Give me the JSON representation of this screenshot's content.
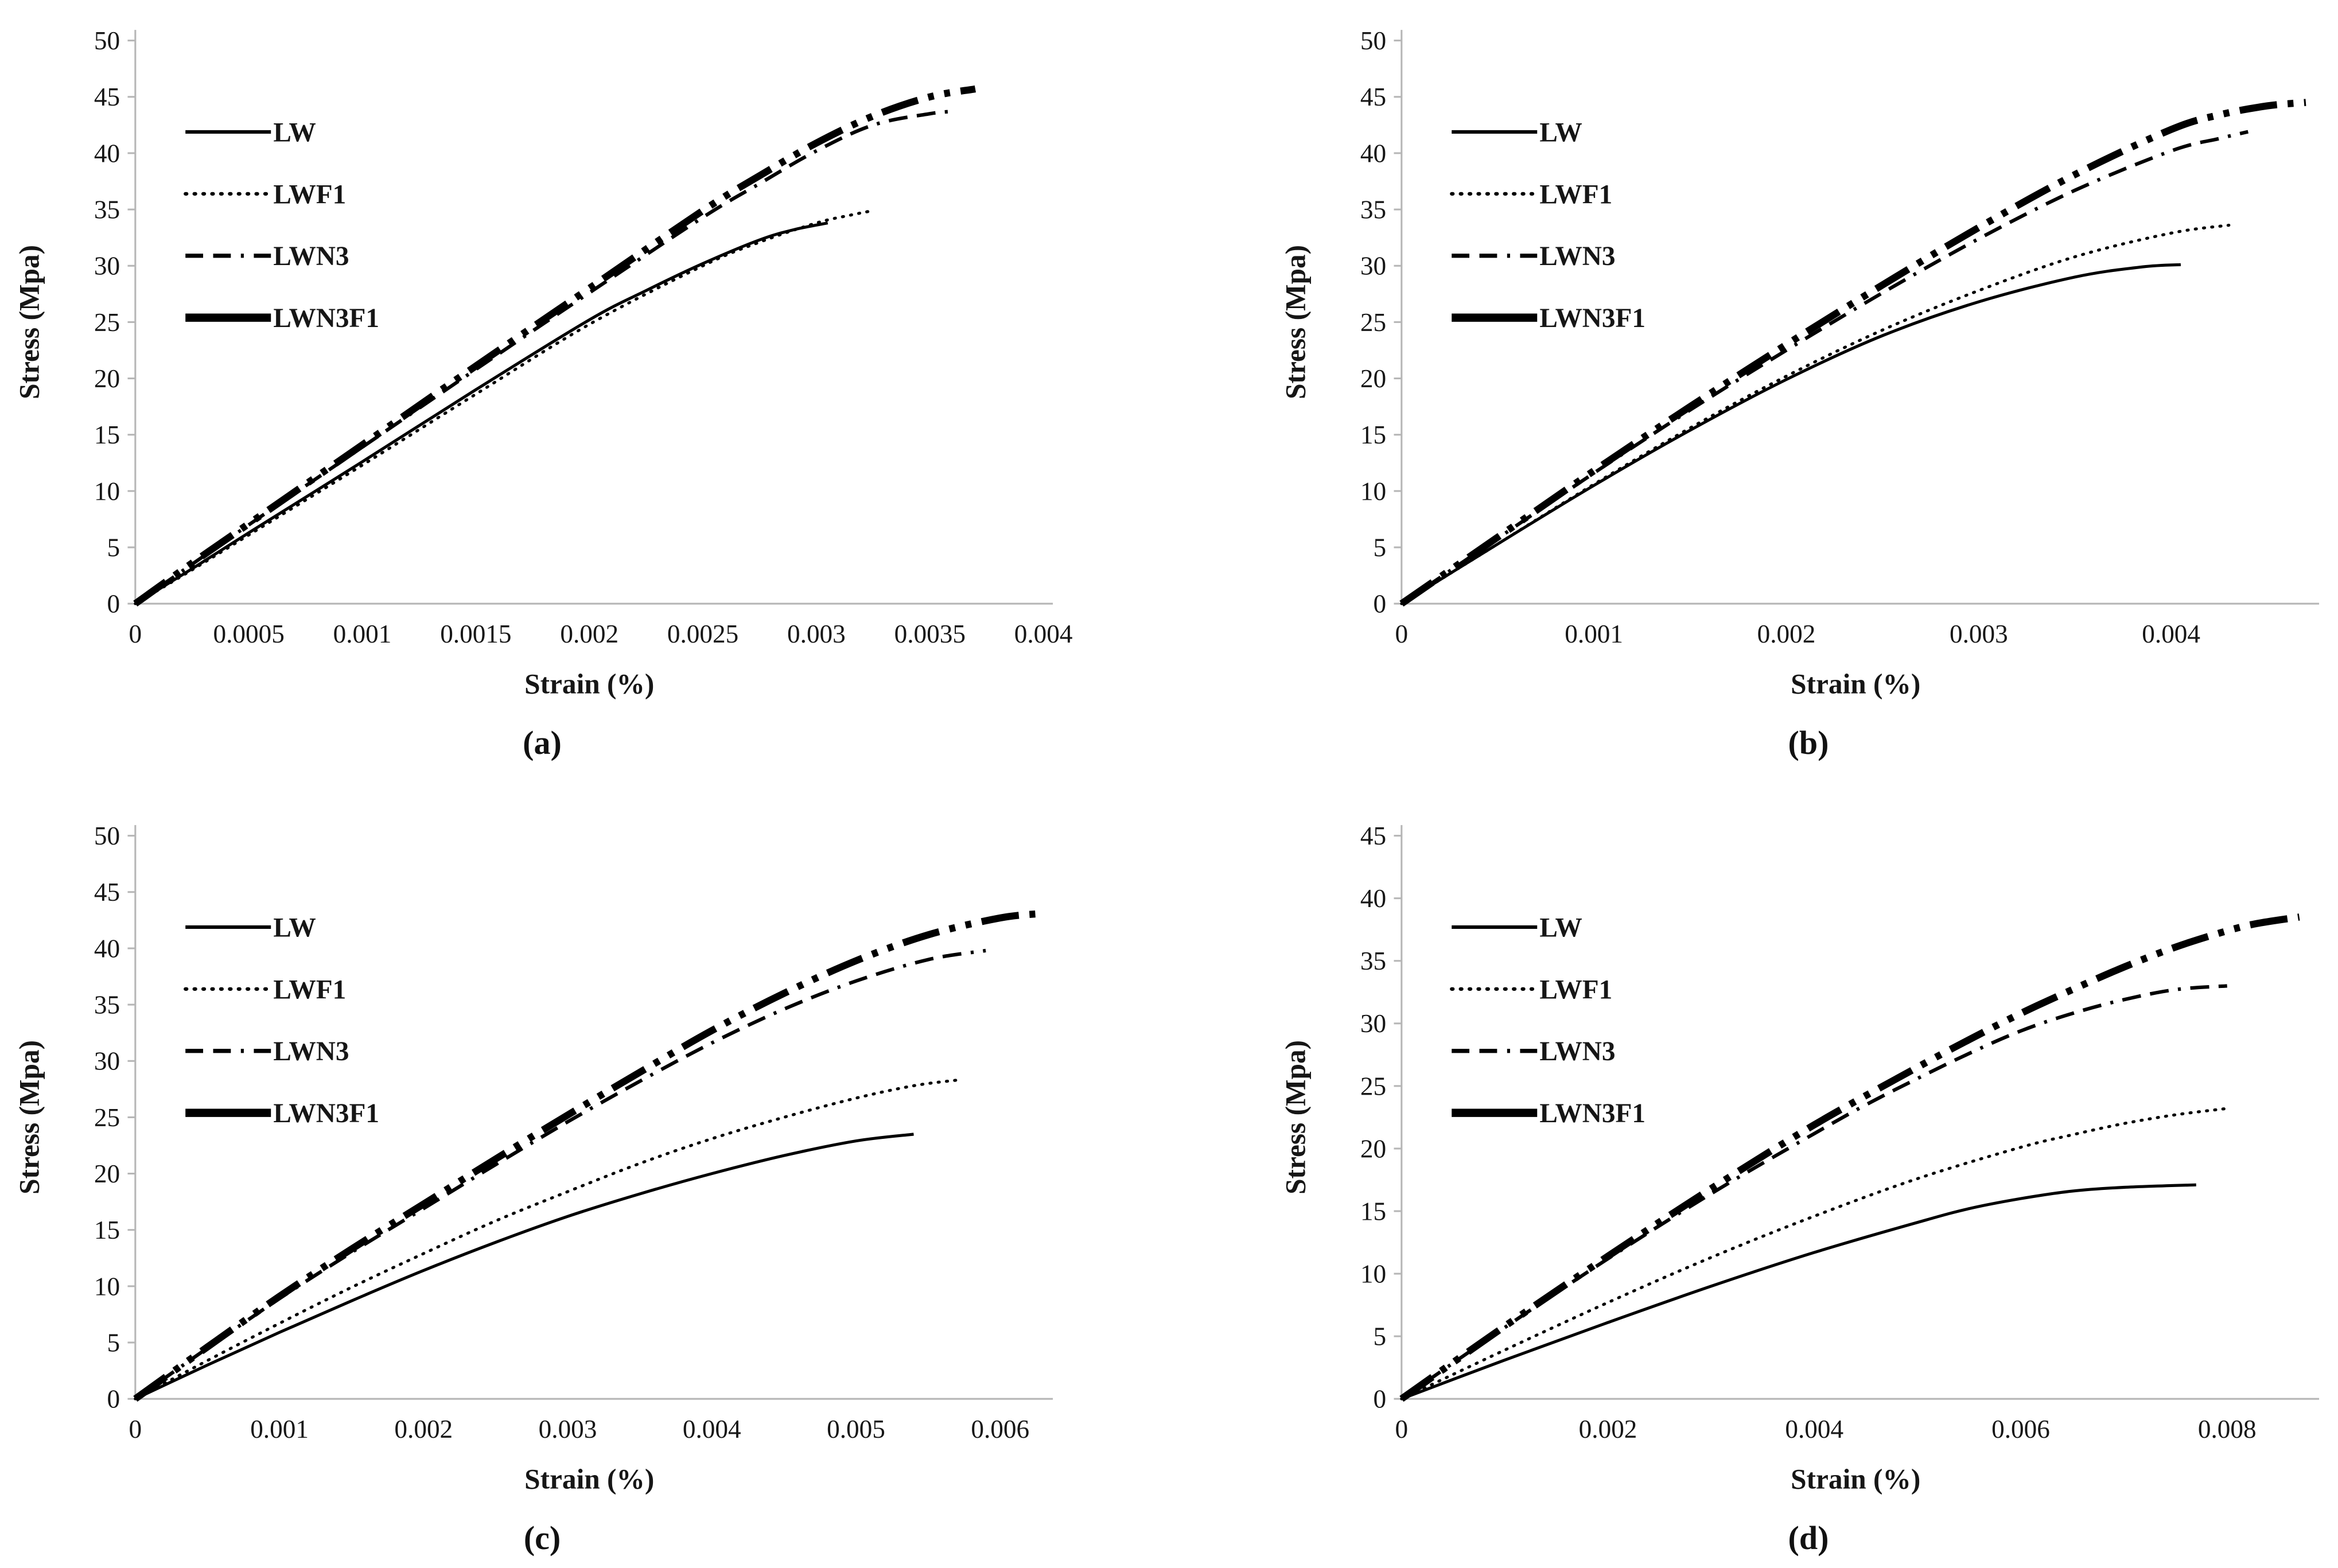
{
  "figure": {
    "background": "#ffffff",
    "series_names": [
      "LW",
      "LWF1",
      "LWN3",
      "LWN3F1"
    ]
  },
  "colors": {
    "line": "#000000",
    "axis": "#b6b6b6",
    "text": "#161616"
  },
  "chart_data": [
    {
      "id": "a",
      "caption": "(a)",
      "type": "line",
      "xlabel": "Strain (%)",
      "ylabel": "Stress (Mpa)",
      "xlim": [
        0,
        0.004
      ],
      "ylim": [
        0,
        50
      ],
      "xticks": [
        0,
        0.0005,
        0.001,
        0.0015,
        0.002,
        0.0025,
        0.003,
        0.0035,
        0.004
      ],
      "ytick_step": 5,
      "grid": false,
      "legend_position": "upper-left",
      "series": [
        {
          "name": "LW",
          "style": "solid-thin",
          "points": [
            [
              0,
              0
            ],
            [
              0.00025,
              3.1
            ],
            [
              0.0005,
              6.3
            ],
            [
              0.001,
              12.6
            ],
            [
              0.0015,
              19.0
            ],
            [
              0.002,
              25.2
            ],
            [
              0.00225,
              27.8
            ],
            [
              0.0025,
              30.2
            ],
            [
              0.00275,
              32.3
            ],
            [
              0.0029,
              33.2
            ],
            [
              0.00305,
              33.8
            ]
          ]
        },
        {
          "name": "LWF1",
          "style": "dotted",
          "points": [
            [
              0,
              0
            ],
            [
              0.00025,
              3.0
            ],
            [
              0.0005,
              6.1
            ],
            [
              0.001,
              12.3
            ],
            [
              0.0015,
              18.6
            ],
            [
              0.002,
              24.8
            ],
            [
              0.0025,
              30.0
            ],
            [
              0.00275,
              32.1
            ],
            [
              0.003,
              33.8
            ],
            [
              0.00315,
              34.5
            ],
            [
              0.00325,
              34.9
            ]
          ]
        },
        {
          "name": "LWN3",
          "style": "dashed",
          "points": [
            [
              0,
              0
            ],
            [
              0.00025,
              3.5
            ],
            [
              0.0005,
              7.0
            ],
            [
              0.001,
              13.9
            ],
            [
              0.0015,
              20.8
            ],
            [
              0.002,
              27.6
            ],
            [
              0.0025,
              34.3
            ],
            [
              0.00275,
              37.3
            ],
            [
              0.003,
              40.2
            ],
            [
              0.00325,
              42.5
            ],
            [
              0.0035,
              43.5
            ],
            [
              0.0036,
              43.7
            ]
          ]
        },
        {
          "name": "LWN3F1",
          "style": "thick-dashdot",
          "points": [
            [
              0,
              0
            ],
            [
              0.00025,
              3.6
            ],
            [
              0.0005,
              7.1
            ],
            [
              0.001,
              14.1
            ],
            [
              0.0015,
              21.1
            ],
            [
              0.002,
              28.0
            ],
            [
              0.0025,
              34.9
            ],
            [
              0.00275,
              38.0
            ],
            [
              0.003,
              40.9
            ],
            [
              0.00325,
              43.3
            ],
            [
              0.0035,
              45.0
            ],
            [
              0.0037,
              45.7
            ]
          ]
        }
      ]
    },
    {
      "id": "b",
      "caption": "(b)",
      "type": "line",
      "xlabel": "Strain (%)",
      "ylabel": "Stress (Mpa)",
      "xlim": [
        0,
        0.00472
      ],
      "ylim": [
        0,
        50
      ],
      "xticks": [
        0,
        0.001,
        0.002,
        0.003,
        0.004
      ],
      "ytick_step": 5,
      "grid": false,
      "legend_position": "upper-left",
      "series": [
        {
          "name": "LW",
          "style": "solid-thin",
          "points": [
            [
              0,
              0
            ],
            [
              0.0005,
              5.3
            ],
            [
              0.001,
              10.5
            ],
            [
              0.0015,
              15.4
            ],
            [
              0.002,
              19.9
            ],
            [
              0.0025,
              23.8
            ],
            [
              0.003,
              26.8
            ],
            [
              0.0035,
              29.0
            ],
            [
              0.00385,
              29.9
            ],
            [
              0.00405,
              30.1
            ]
          ]
        },
        {
          "name": "LWF1",
          "style": "dotted",
          "points": [
            [
              0,
              0
            ],
            [
              0.0005,
              5.3
            ],
            [
              0.001,
              10.6
            ],
            [
              0.0015,
              15.6
            ],
            [
              0.002,
              20.2
            ],
            [
              0.0025,
              24.3
            ],
            [
              0.003,
              27.8
            ],
            [
              0.0035,
              30.8
            ],
            [
              0.004,
              32.9
            ],
            [
              0.0043,
              33.6
            ]
          ]
        },
        {
          "name": "LWN3",
          "style": "dashed",
          "points": [
            [
              0,
              0
            ],
            [
              0.0005,
              5.8
            ],
            [
              0.001,
              11.6
            ],
            [
              0.0015,
              17.2
            ],
            [
              0.002,
              22.5
            ],
            [
              0.0025,
              27.6
            ],
            [
              0.003,
              32.4
            ],
            [
              0.0035,
              36.7
            ],
            [
              0.004,
              40.2
            ],
            [
              0.00425,
              41.3
            ],
            [
              0.0044,
              41.9
            ]
          ]
        },
        {
          "name": "LWN3F1",
          "style": "thick-dashdot",
          "points": [
            [
              0,
              0
            ],
            [
              0.0005,
              5.9
            ],
            [
              0.001,
              11.8
            ],
            [
              0.0015,
              17.5
            ],
            [
              0.002,
              23.0
            ],
            [
              0.0025,
              28.3
            ],
            [
              0.003,
              33.4
            ],
            [
              0.0035,
              38.1
            ],
            [
              0.004,
              42.1
            ],
            [
              0.00425,
              43.4
            ],
            [
              0.0045,
              44.2
            ],
            [
              0.0047,
              44.5
            ]
          ]
        }
      ]
    },
    {
      "id": "c",
      "caption": "(c)",
      "type": "line",
      "xlabel": "Strain (%)",
      "ylabel": "Stress (Mpa)",
      "xlim": [
        0,
        0.0063
      ],
      "ylim": [
        0,
        50
      ],
      "xticks": [
        0,
        0.001,
        0.002,
        0.003,
        0.004,
        0.005,
        0.006
      ],
      "ytick_step": 5,
      "grid": false,
      "legend_position": "upper-left",
      "series": [
        {
          "name": "LW",
          "style": "solid-thin",
          "points": [
            [
              0,
              0
            ],
            [
              0.0005,
              3.0
            ],
            [
              0.001,
              5.9
            ],
            [
              0.0015,
              8.7
            ],
            [
              0.002,
              11.4
            ],
            [
              0.0025,
              13.9
            ],
            [
              0.003,
              16.2
            ],
            [
              0.0035,
              18.2
            ],
            [
              0.004,
              20.0
            ],
            [
              0.0045,
              21.6
            ],
            [
              0.005,
              22.9
            ],
            [
              0.0054,
              23.5
            ]
          ]
        },
        {
          "name": "LWF1",
          "style": "dotted",
          "points": [
            [
              0,
              0
            ],
            [
              0.0005,
              3.4
            ],
            [
              0.001,
              6.7
            ],
            [
              0.0015,
              9.9
            ],
            [
              0.002,
              12.9
            ],
            [
              0.0025,
              15.8
            ],
            [
              0.003,
              18.4
            ],
            [
              0.0035,
              20.9
            ],
            [
              0.004,
              23.1
            ],
            [
              0.0045,
              25.0
            ],
            [
              0.005,
              26.7
            ],
            [
              0.0054,
              27.8
            ],
            [
              0.0057,
              28.3
            ]
          ]
        },
        {
          "name": "LWN3",
          "style": "dashed",
          "points": [
            [
              0,
              0
            ],
            [
              0.0005,
              4.5
            ],
            [
              0.001,
              8.9
            ],
            [
              0.0015,
              13.0
            ],
            [
              0.002,
              16.9
            ],
            [
              0.0025,
              20.8
            ],
            [
              0.003,
              24.6
            ],
            [
              0.0035,
              28.2
            ],
            [
              0.004,
              31.6
            ],
            [
              0.0045,
              34.6
            ],
            [
              0.005,
              37.1
            ],
            [
              0.0055,
              39.0
            ],
            [
              0.0059,
              39.8
            ]
          ]
        },
        {
          "name": "LWN3F1",
          "style": "thick-dashdot",
          "points": [
            [
              0,
              0
            ],
            [
              0.0005,
              4.6
            ],
            [
              0.001,
              9.1
            ],
            [
              0.0015,
              13.3
            ],
            [
              0.002,
              17.3
            ],
            [
              0.0025,
              21.3
            ],
            [
              0.003,
              25.2
            ],
            [
              0.0035,
              29.0
            ],
            [
              0.004,
              32.7
            ],
            [
              0.0045,
              36.0
            ],
            [
              0.005,
              38.9
            ],
            [
              0.0055,
              41.2
            ],
            [
              0.006,
              42.7
            ],
            [
              0.0063,
              43.1
            ]
          ]
        }
      ]
    },
    {
      "id": "d",
      "caption": "(d)",
      "type": "line",
      "xlabel": "Strain (%)",
      "ylabel": "Stress (Mpa)",
      "xlim": [
        0,
        0.0088
      ],
      "ylim": [
        0,
        45
      ],
      "xticks": [
        0,
        0.002,
        0.004,
        0.006,
        0.008
      ],
      "ytick_step": 5,
      "grid": false,
      "legend_position": "upper-left",
      "series": [
        {
          "name": "LW",
          "style": "solid-thin",
          "points": [
            [
              0,
              0
            ],
            [
              0.001,
              3.1
            ],
            [
              0.002,
              6.1
            ],
            [
              0.003,
              9.0
            ],
            [
              0.004,
              11.7
            ],
            [
              0.005,
              14.1
            ],
            [
              0.0055,
              15.2
            ],
            [
              0.006,
              16.0
            ],
            [
              0.0065,
              16.6
            ],
            [
              0.007,
              16.9
            ],
            [
              0.0077,
              17.1
            ]
          ]
        },
        {
          "name": "LWF1",
          "style": "dotted",
          "points": [
            [
              0,
              0
            ],
            [
              0.001,
              3.9
            ],
            [
              0.002,
              7.7
            ],
            [
              0.003,
              11.3
            ],
            [
              0.004,
              14.6
            ],
            [
              0.005,
              17.6
            ],
            [
              0.006,
              20.1
            ],
            [
              0.0065,
              21.1
            ],
            [
              0.007,
              22.0
            ],
            [
              0.0075,
              22.7
            ],
            [
              0.008,
              23.2
            ]
          ]
        },
        {
          "name": "LWN3",
          "style": "dashed",
          "points": [
            [
              0,
              0
            ],
            [
              0.001,
              5.7
            ],
            [
              0.002,
              11.2
            ],
            [
              0.003,
              16.4
            ],
            [
              0.004,
              21.2
            ],
            [
              0.0045,
              23.5
            ],
            [
              0.005,
              25.6
            ],
            [
              0.0055,
              27.6
            ],
            [
              0.006,
              29.4
            ],
            [
              0.0065,
              30.8
            ],
            [
              0.007,
              31.9
            ],
            [
              0.0075,
              32.7
            ],
            [
              0.008,
              33.0
            ]
          ]
        },
        {
          "name": "LWN3F1",
          "style": "thick-dashdot",
          "points": [
            [
              0,
              0
            ],
            [
              0.001,
              5.8
            ],
            [
              0.002,
              11.4
            ],
            [
              0.003,
              16.8
            ],
            [
              0.004,
              21.9
            ],
            [
              0.005,
              26.5
            ],
            [
              0.0055,
              28.7
            ],
            [
              0.006,
              30.8
            ],
            [
              0.0065,
              32.7
            ],
            [
              0.007,
              34.5
            ],
            [
              0.0075,
              36.1
            ],
            [
              0.008,
              37.4
            ],
            [
              0.0083,
              38.0
            ],
            [
              0.0087,
              38.5
            ]
          ]
        }
      ]
    }
  ]
}
